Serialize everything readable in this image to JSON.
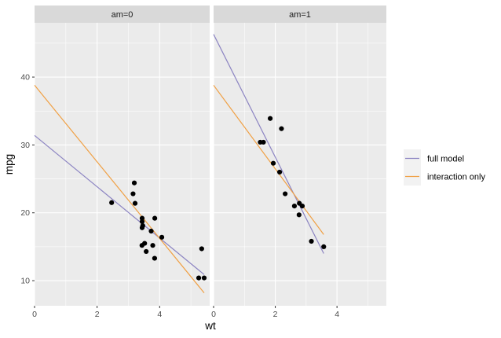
{
  "chart_data": {
    "type": "scatter",
    "xlabel": "wt",
    "ylabel": "mpg",
    "xlim": [
      0,
      5.6
    ],
    "ylim": [
      6.3,
      48.0
    ],
    "x_ticks": [
      0,
      2,
      4
    ],
    "y_ticks": [
      10,
      20,
      30,
      40
    ],
    "grid": true,
    "legend_position": "right",
    "colors": {
      "full model": "#8c84c2",
      "interaction only": "#f0a044",
      "points": "#000000"
    },
    "legend": [
      "full model",
      "interaction only"
    ],
    "panels": [
      {
        "label": "am=0",
        "points": [
          {
            "x": 2.465,
            "y": 21.5
          },
          {
            "x": 3.215,
            "y": 21.4
          },
          {
            "x": 3.44,
            "y": 18.7
          },
          {
            "x": 3.46,
            "y": 18.1
          },
          {
            "x": 3.57,
            "y": 14.3
          },
          {
            "x": 3.19,
            "y": 24.4
          },
          {
            "x": 3.15,
            "y": 22.8
          },
          {
            "x": 3.44,
            "y": 19.2
          },
          {
            "x": 3.44,
            "y": 17.8
          },
          {
            "x": 4.07,
            "y": 16.4
          },
          {
            "x": 3.73,
            "y": 17.3
          },
          {
            "x": 3.78,
            "y": 15.2
          },
          {
            "x": 5.25,
            "y": 10.4
          },
          {
            "x": 5.424,
            "y": 10.4
          },
          {
            "x": 5.345,
            "y": 14.7
          },
          {
            "x": 3.52,
            "y": 15.5
          },
          {
            "x": 3.435,
            "y": 15.2
          },
          {
            "x": 3.84,
            "y": 13.3
          },
          {
            "x": 3.845,
            "y": 19.2
          }
        ],
        "lines": [
          {
            "name": "full model",
            "x": [
              0,
              5.424
            ],
            "y": [
              31.4,
              10.9
            ]
          },
          {
            "name": "interaction only",
            "x": [
              0,
              5.424
            ],
            "y": [
              38.8,
              8.2
            ]
          }
        ]
      },
      {
        "label": "am=1",
        "points": [
          {
            "x": 2.62,
            "y": 21.0
          },
          {
            "x": 2.875,
            "y": 21.0
          },
          {
            "x": 2.32,
            "y": 22.8
          },
          {
            "x": 2.2,
            "y": 32.4
          },
          {
            "x": 1.615,
            "y": 30.4
          },
          {
            "x": 1.835,
            "y": 33.9
          },
          {
            "x": 1.935,
            "y": 27.3
          },
          {
            "x": 2.14,
            "y": 26.0
          },
          {
            "x": 1.513,
            "y": 30.4
          },
          {
            "x": 3.17,
            "y": 15.8
          },
          {
            "x": 2.77,
            "y": 19.7
          },
          {
            "x": 3.57,
            "y": 15.0
          },
          {
            "x": 2.78,
            "y": 21.4
          }
        ],
        "lines": [
          {
            "name": "full model",
            "x": [
              0,
              3.57
            ],
            "y": [
              46.3,
              14.0
            ]
          },
          {
            "name": "interaction only",
            "x": [
              0,
              3.57
            ],
            "y": [
              38.8,
              16.8
            ]
          }
        ]
      }
    ]
  }
}
